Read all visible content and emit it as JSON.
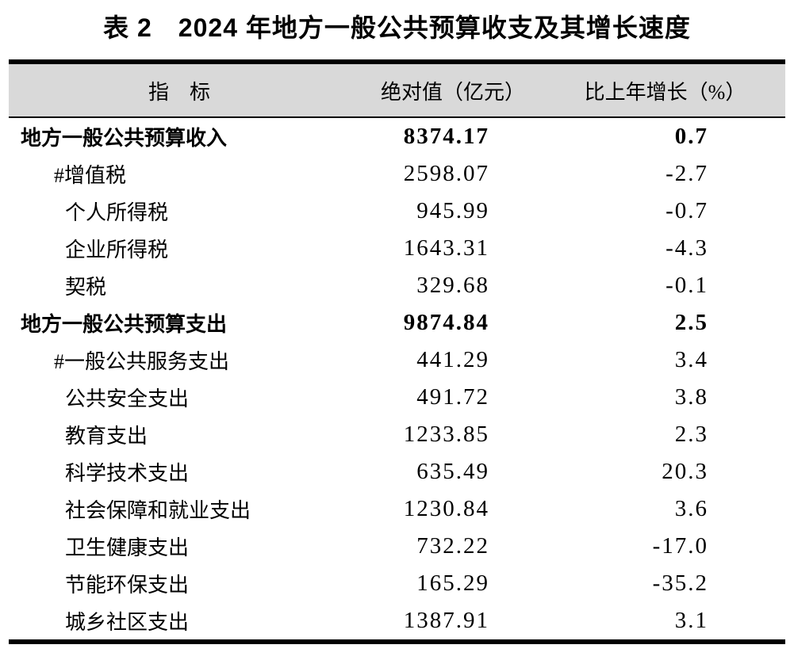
{
  "title": "表 2　2024 年地方一般公共预算收支及其增长速度",
  "table": {
    "columns": [
      "指　标",
      "绝对值（亿元）",
      "比上年增长（%）"
    ],
    "rows": [
      {
        "label": "地方一般公共预算收入",
        "value": "8374.17",
        "growth": "0.7",
        "level": 0,
        "bold": true
      },
      {
        "label": "#增值税",
        "value": "2598.07",
        "growth": "-2.7",
        "level": 1,
        "bold": false
      },
      {
        "label": "个人所得税",
        "value": "945.99",
        "growth": "-0.7",
        "level": 2,
        "bold": false
      },
      {
        "label": "企业所得税",
        "value": "1643.31",
        "growth": "-4.3",
        "level": 2,
        "bold": false
      },
      {
        "label": "契税",
        "value": "329.68",
        "growth": "-0.1",
        "level": 2,
        "bold": false
      },
      {
        "label": "地方一般公共预算支出",
        "value": "9874.84",
        "growth": "2.5",
        "level": 0,
        "bold": true
      },
      {
        "label": "#一般公共服务支出",
        "value": "441.29",
        "growth": "3.4",
        "level": 1,
        "bold": false
      },
      {
        "label": "公共安全支出",
        "value": "491.72",
        "growth": "3.8",
        "level": 2,
        "bold": false
      },
      {
        "label": "教育支出",
        "value": "1233.85",
        "growth": "2.3",
        "level": 2,
        "bold": false
      },
      {
        "label": "科学技术支出",
        "value": "635.49",
        "growth": "20.3",
        "level": 2,
        "bold": false
      },
      {
        "label": "社会保障和就业支出",
        "value": "1230.84",
        "growth": "3.6",
        "level": 2,
        "bold": false
      },
      {
        "label": "卫生健康支出",
        "value": "732.22",
        "growth": "-17.0",
        "level": 2,
        "bold": false
      },
      {
        "label": "节能环保支出",
        "value": "165.29",
        "growth": "-35.2",
        "level": 2,
        "bold": false
      },
      {
        "label": "城乡社区支出",
        "value": "1387.91",
        "growth": "3.1",
        "level": 2,
        "bold": false
      }
    ],
    "colors": {
      "header_background": "#d9d9d9",
      "rule": "#000000",
      "text": "#000000"
    }
  }
}
